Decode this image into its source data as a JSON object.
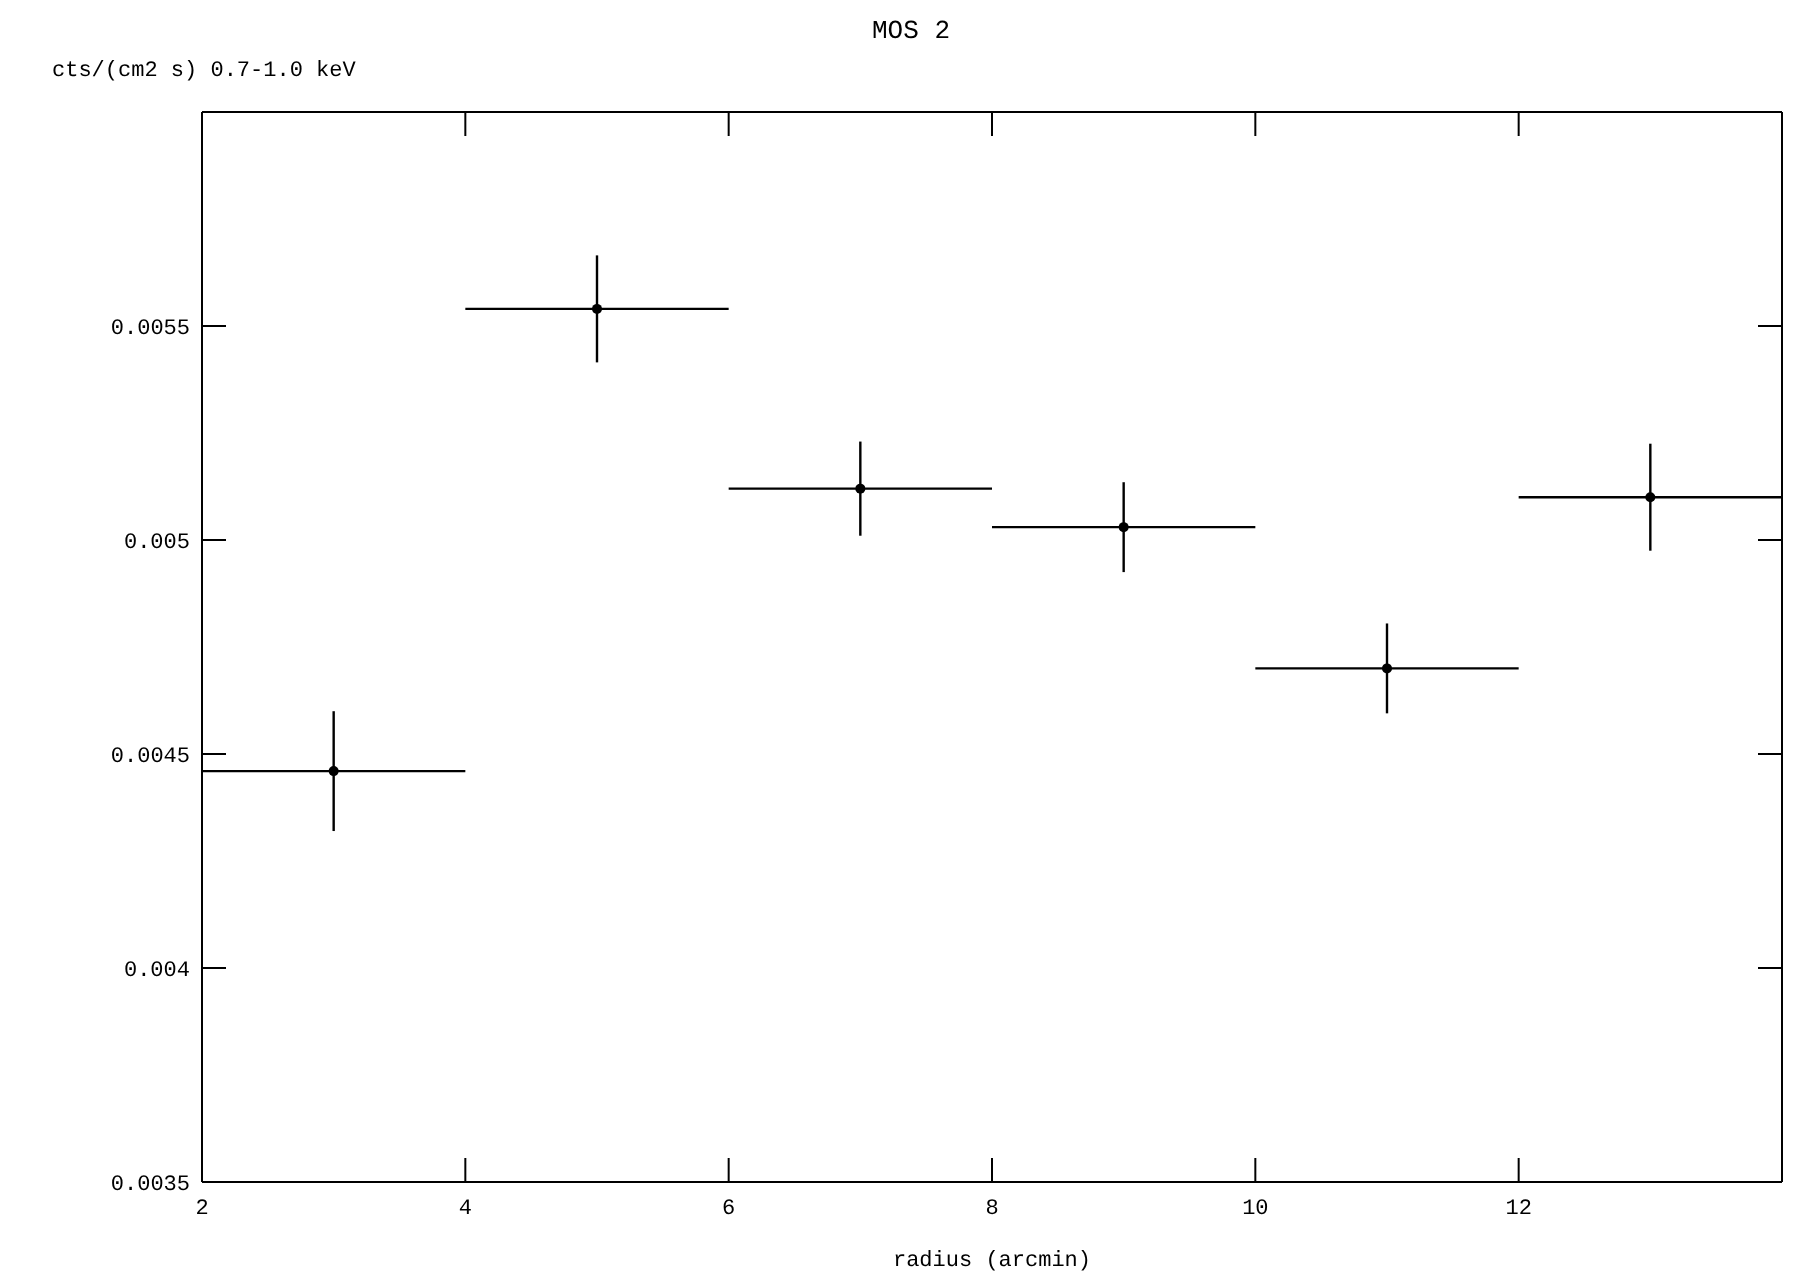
{
  "chart_data": {
    "type": "scatter",
    "title": "MOS 2",
    "xlabel": "radius (arcmin)",
    "ylabel": "cts/(cm2 s) 0.7-1.0 keV",
    "x": [
      3,
      5,
      7,
      9,
      11,
      13
    ],
    "values": [
      0.00446,
      0.00554,
      0.00512,
      0.00503,
      0.0047,
      0.0051
    ],
    "errors": [
      0.00014,
      0.000125,
      0.00011,
      0.000105,
      0.000105,
      0.000125
    ],
    "xerrors": [
      1,
      1,
      1,
      1,
      1,
      1
    ],
    "color": "#000000",
    "marker": "circle",
    "xlim": [
      2,
      14
    ],
    "xticks": [
      2,
      4,
      6,
      8,
      10,
      12
    ],
    "ylim": [
      0.0035,
      0.006
    ],
    "yticks": [
      0.0035,
      0.004,
      0.0045,
      0.005,
      0.0055
    ]
  }
}
